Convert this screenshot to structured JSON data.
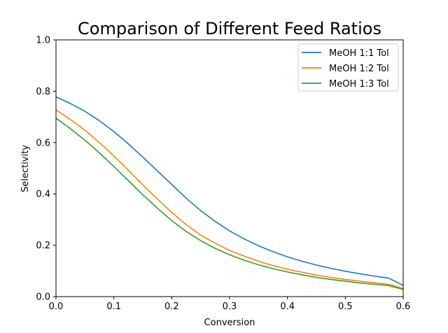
{
  "chart_data": {
    "type": "line",
    "title": "Comparison of Different Feed Ratios",
    "xlabel": "Conversion",
    "ylabel": "Selectivity",
    "xlim": [
      0,
      0.6
    ],
    "ylim": [
      0,
      1.0
    ],
    "xticks": [
      "0.0",
      "0.1",
      "0.2",
      "0.3",
      "0.4",
      "0.5",
      "0.6"
    ],
    "yticks": [
      "0.0",
      "0.2",
      "0.4",
      "0.6",
      "0.8",
      "1.0"
    ],
    "grid": false,
    "legend_position": "top-right",
    "x": [
      0.0,
      0.025,
      0.05,
      0.075,
      0.1,
      0.125,
      0.15,
      0.175,
      0.2,
      0.225,
      0.25,
      0.275,
      0.3,
      0.325,
      0.35,
      0.375,
      0.4,
      0.425,
      0.45,
      0.475,
      0.5,
      0.525,
      0.55,
      0.575,
      0.6
    ],
    "series": [
      {
        "name": "MeOH 1:1 Tol",
        "color": "#1f77b4",
        "values": [
          0.778,
          0.752,
          0.722,
          0.685,
          0.643,
          0.595,
          0.543,
          0.49,
          0.437,
          0.383,
          0.335,
          0.293,
          0.256,
          0.225,
          0.198,
          0.175,
          0.155,
          0.138,
          0.123,
          0.11,
          0.099,
          0.089,
          0.08,
          0.072,
          0.044
        ]
      },
      {
        "name": "MeOH 1:2 Tol",
        "color": "#ff7f0e",
        "values": [
          0.727,
          0.69,
          0.648,
          0.6,
          0.548,
          0.492,
          0.435,
          0.381,
          0.328,
          0.28,
          0.24,
          0.208,
          0.18,
          0.158,
          0.138,
          0.121,
          0.107,
          0.095,
          0.084,
          0.075,
          0.067,
          0.06,
          0.054,
          0.048,
          0.031
        ]
      },
      {
        "name": "MeOH 1:3 Tol",
        "color": "#2ca02c",
        "values": [
          0.695,
          0.654,
          0.609,
          0.56,
          0.507,
          0.452,
          0.397,
          0.345,
          0.296,
          0.254,
          0.218,
          0.188,
          0.163,
          0.142,
          0.124,
          0.109,
          0.096,
          0.085,
          0.075,
          0.067,
          0.06,
          0.053,
          0.048,
          0.043,
          0.028
        ]
      }
    ]
  }
}
